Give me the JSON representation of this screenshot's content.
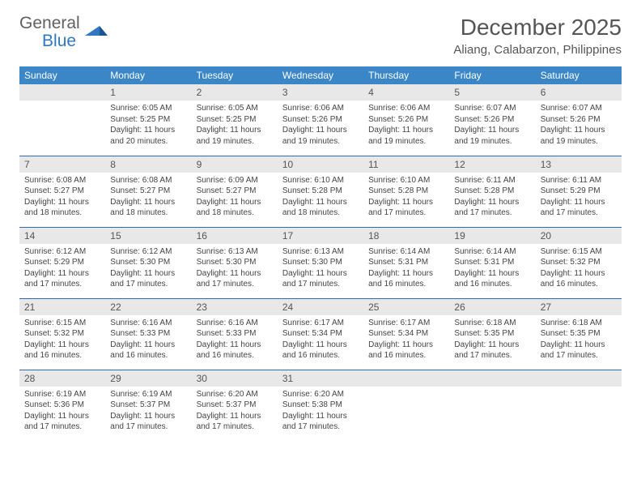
{
  "logo": {
    "word1": "General",
    "word2": "Blue"
  },
  "title": "December 2025",
  "location": "Aliang, Calabarzon, Philippines",
  "colors": {
    "header_bg": "#3b86c6",
    "header_text": "#ffffff",
    "daynum_bg": "#e8e8e8",
    "text": "#444444",
    "rule": "#2f6ca8",
    "logo_gray": "#606060",
    "logo_blue": "#2f78bf"
  },
  "day_headers": [
    "Sunday",
    "Monday",
    "Tuesday",
    "Wednesday",
    "Thursday",
    "Friday",
    "Saturday"
  ],
  "weeks": [
    [
      {
        "n": "",
        "sr": "",
        "ss": "",
        "dl": ""
      },
      {
        "n": "1",
        "sr": "6:05 AM",
        "ss": "5:25 PM",
        "dl": "11 hours and 20 minutes."
      },
      {
        "n": "2",
        "sr": "6:05 AM",
        "ss": "5:25 PM",
        "dl": "11 hours and 19 minutes."
      },
      {
        "n": "3",
        "sr": "6:06 AM",
        "ss": "5:26 PM",
        "dl": "11 hours and 19 minutes."
      },
      {
        "n": "4",
        "sr": "6:06 AM",
        "ss": "5:26 PM",
        "dl": "11 hours and 19 minutes."
      },
      {
        "n": "5",
        "sr": "6:07 AM",
        "ss": "5:26 PM",
        "dl": "11 hours and 19 minutes."
      },
      {
        "n": "6",
        "sr": "6:07 AM",
        "ss": "5:26 PM",
        "dl": "11 hours and 19 minutes."
      }
    ],
    [
      {
        "n": "7",
        "sr": "6:08 AM",
        "ss": "5:27 PM",
        "dl": "11 hours and 18 minutes."
      },
      {
        "n": "8",
        "sr": "6:08 AM",
        "ss": "5:27 PM",
        "dl": "11 hours and 18 minutes."
      },
      {
        "n": "9",
        "sr": "6:09 AM",
        "ss": "5:27 PM",
        "dl": "11 hours and 18 minutes."
      },
      {
        "n": "10",
        "sr": "6:10 AM",
        "ss": "5:28 PM",
        "dl": "11 hours and 18 minutes."
      },
      {
        "n": "11",
        "sr": "6:10 AM",
        "ss": "5:28 PM",
        "dl": "11 hours and 17 minutes."
      },
      {
        "n": "12",
        "sr": "6:11 AM",
        "ss": "5:28 PM",
        "dl": "11 hours and 17 minutes."
      },
      {
        "n": "13",
        "sr": "6:11 AM",
        "ss": "5:29 PM",
        "dl": "11 hours and 17 minutes."
      }
    ],
    [
      {
        "n": "14",
        "sr": "6:12 AM",
        "ss": "5:29 PM",
        "dl": "11 hours and 17 minutes."
      },
      {
        "n": "15",
        "sr": "6:12 AM",
        "ss": "5:30 PM",
        "dl": "11 hours and 17 minutes."
      },
      {
        "n": "16",
        "sr": "6:13 AM",
        "ss": "5:30 PM",
        "dl": "11 hours and 17 minutes."
      },
      {
        "n": "17",
        "sr": "6:13 AM",
        "ss": "5:30 PM",
        "dl": "11 hours and 17 minutes."
      },
      {
        "n": "18",
        "sr": "6:14 AM",
        "ss": "5:31 PM",
        "dl": "11 hours and 16 minutes."
      },
      {
        "n": "19",
        "sr": "6:14 AM",
        "ss": "5:31 PM",
        "dl": "11 hours and 16 minutes."
      },
      {
        "n": "20",
        "sr": "6:15 AM",
        "ss": "5:32 PM",
        "dl": "11 hours and 16 minutes."
      }
    ],
    [
      {
        "n": "21",
        "sr": "6:15 AM",
        "ss": "5:32 PM",
        "dl": "11 hours and 16 minutes."
      },
      {
        "n": "22",
        "sr": "6:16 AM",
        "ss": "5:33 PM",
        "dl": "11 hours and 16 minutes."
      },
      {
        "n": "23",
        "sr": "6:16 AM",
        "ss": "5:33 PM",
        "dl": "11 hours and 16 minutes."
      },
      {
        "n": "24",
        "sr": "6:17 AM",
        "ss": "5:34 PM",
        "dl": "11 hours and 16 minutes."
      },
      {
        "n": "25",
        "sr": "6:17 AM",
        "ss": "5:34 PM",
        "dl": "11 hours and 16 minutes."
      },
      {
        "n": "26",
        "sr": "6:18 AM",
        "ss": "5:35 PM",
        "dl": "11 hours and 17 minutes."
      },
      {
        "n": "27",
        "sr": "6:18 AM",
        "ss": "5:35 PM",
        "dl": "11 hours and 17 minutes."
      }
    ],
    [
      {
        "n": "28",
        "sr": "6:19 AM",
        "ss": "5:36 PM",
        "dl": "11 hours and 17 minutes."
      },
      {
        "n": "29",
        "sr": "6:19 AM",
        "ss": "5:37 PM",
        "dl": "11 hours and 17 minutes."
      },
      {
        "n": "30",
        "sr": "6:20 AM",
        "ss": "5:37 PM",
        "dl": "11 hours and 17 minutes."
      },
      {
        "n": "31",
        "sr": "6:20 AM",
        "ss": "5:38 PM",
        "dl": "11 hours and 17 minutes."
      },
      {
        "n": "",
        "sr": "",
        "ss": "",
        "dl": ""
      },
      {
        "n": "",
        "sr": "",
        "ss": "",
        "dl": ""
      },
      {
        "n": "",
        "sr": "",
        "ss": "",
        "dl": ""
      }
    ]
  ],
  "labels": {
    "sunrise": "Sunrise: ",
    "sunset": "Sunset: ",
    "daylight": "Daylight: "
  }
}
